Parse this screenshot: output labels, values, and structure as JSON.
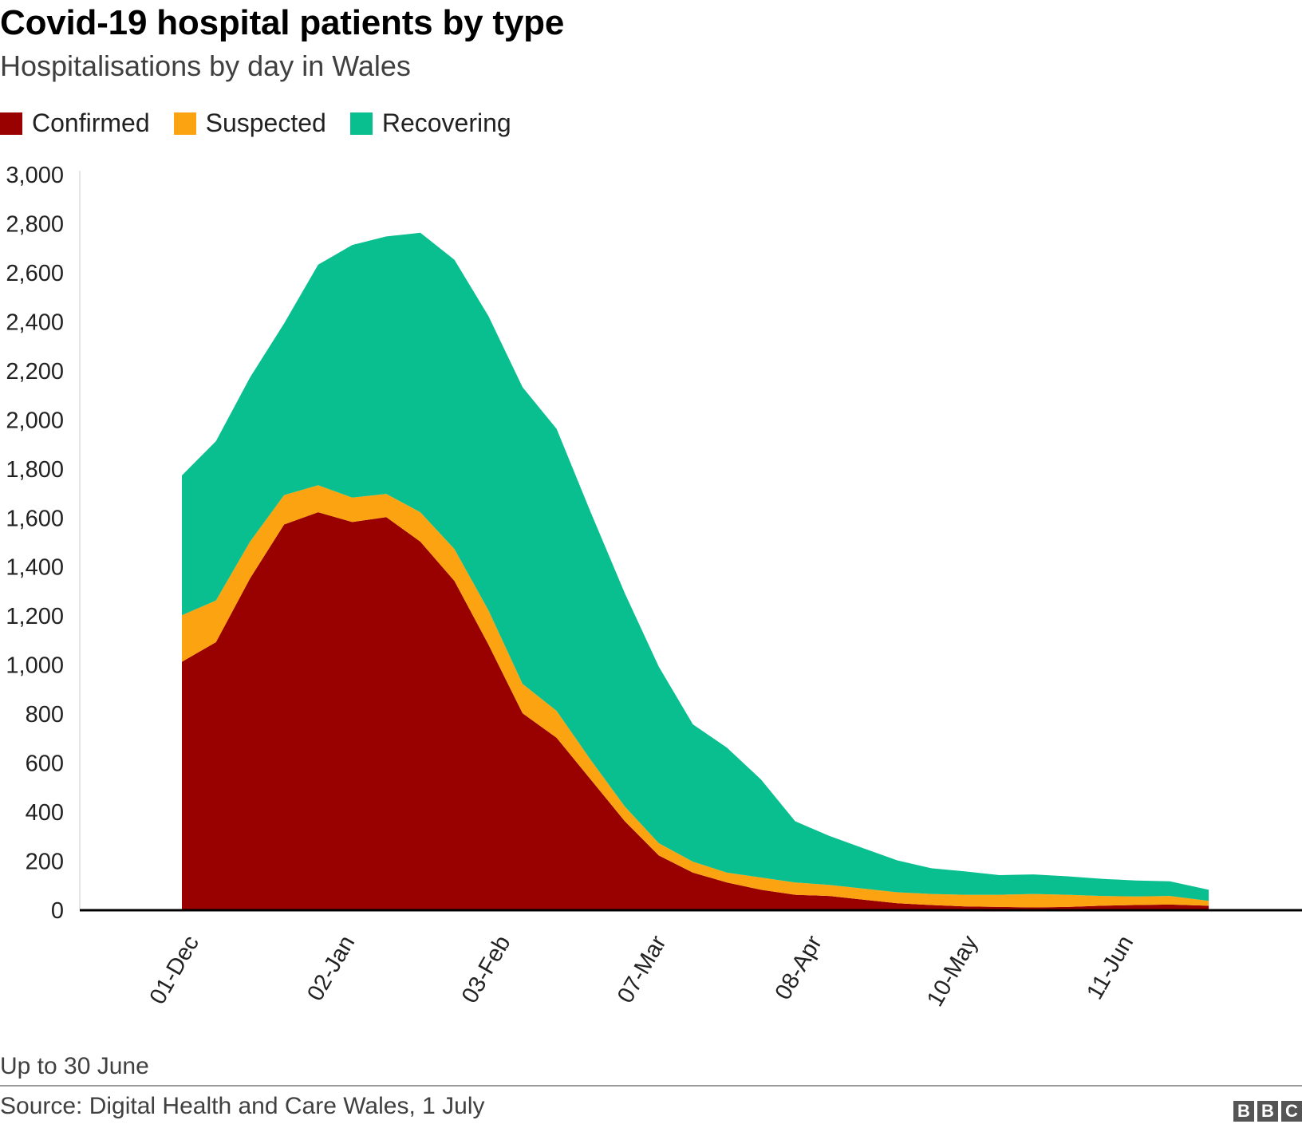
{
  "title": "Covid-19 hospital patients by type",
  "subtitle": "Hospitalisations by day in Wales",
  "legend": [
    {
      "label": "Confirmed",
      "color": "#990000"
    },
    {
      "label": "Suspected",
      "color": "#fca311"
    },
    {
      "label": "Recovering",
      "color": "#0abf8f"
    }
  ],
  "footnote": "Up to 30 June",
  "source": "Source: Digital Health and Care Wales, 1 July",
  "logo": [
    "B",
    "B",
    "C"
  ],
  "chart_data": {
    "type": "area",
    "stacked": true,
    "x_label": "",
    "y_label": "",
    "ylim": [
      0,
      3000
    ],
    "y_ticks": [
      0,
      200,
      400,
      600,
      800,
      1000,
      1200,
      1400,
      1600,
      1800,
      2000,
      2200,
      2400,
      2600,
      2800,
      3000
    ],
    "y_tick_labels": [
      "0",
      "200",
      "400",
      "600",
      "800",
      "1,000",
      "1,200",
      "1,400",
      "1,600",
      "1,800",
      "2,000",
      "2,200",
      "2,400",
      "2,600",
      "2,800",
      "3,000"
    ],
    "x_range": [
      "2020-12-01",
      "2021-06-30"
    ],
    "x_ticks": [
      "2020-12-01",
      "2021-01-02",
      "2021-02-03",
      "2021-03-07",
      "2021-04-08",
      "2021-05-10",
      "2021-06-11"
    ],
    "x_tick_labels": [
      "01-Dec",
      "02-Jan",
      "03-Feb",
      "07-Mar",
      "08-Apr",
      "10-May",
      "11-Jun"
    ],
    "grid": false,
    "legend_position": "top-left",
    "series": [
      {
        "name": "Confirmed",
        "color": "#990000",
        "points": [
          [
            "2020-12-01",
            1010
          ],
          [
            "2020-12-08",
            1090
          ],
          [
            "2020-12-15",
            1350
          ],
          [
            "2020-12-22",
            1570
          ],
          [
            "2020-12-29",
            1620
          ],
          [
            "2021-01-05",
            1580
          ],
          [
            "2021-01-12",
            1600
          ],
          [
            "2021-01-19",
            1500
          ],
          [
            "2021-01-26",
            1340
          ],
          [
            "2021-02-02",
            1080
          ],
          [
            "2021-02-09",
            800
          ],
          [
            "2021-02-16",
            700
          ],
          [
            "2021-02-23",
            530
          ],
          [
            "2021-03-02",
            360
          ],
          [
            "2021-03-09",
            220
          ],
          [
            "2021-03-16",
            150
          ],
          [
            "2021-03-23",
            110
          ],
          [
            "2021-03-30",
            80
          ],
          [
            "2021-04-06",
            60
          ],
          [
            "2021-04-13",
            55
          ],
          [
            "2021-04-20",
            40
          ],
          [
            "2021-04-27",
            25
          ],
          [
            "2021-05-04",
            18
          ],
          [
            "2021-05-11",
            12
          ],
          [
            "2021-05-18",
            10
          ],
          [
            "2021-05-25",
            8
          ],
          [
            "2021-06-01",
            10
          ],
          [
            "2021-06-08",
            15
          ],
          [
            "2021-06-15",
            18
          ],
          [
            "2021-06-22",
            20
          ],
          [
            "2021-06-30",
            15
          ]
        ]
      },
      {
        "name": "Suspected",
        "color": "#fca311",
        "points": [
          [
            "2020-12-01",
            190
          ],
          [
            "2020-12-08",
            170
          ],
          [
            "2020-12-15",
            150
          ],
          [
            "2020-12-22",
            120
          ],
          [
            "2020-12-29",
            110
          ],
          [
            "2021-01-05",
            100
          ],
          [
            "2021-01-12",
            95
          ],
          [
            "2021-01-19",
            120
          ],
          [
            "2021-01-26",
            130
          ],
          [
            "2021-02-02",
            140
          ],
          [
            "2021-02-09",
            120
          ],
          [
            "2021-02-16",
            110
          ],
          [
            "2021-02-23",
            80
          ],
          [
            "2021-03-02",
            60
          ],
          [
            "2021-03-09",
            50
          ],
          [
            "2021-03-16",
            45
          ],
          [
            "2021-03-23",
            40
          ],
          [
            "2021-03-30",
            50
          ],
          [
            "2021-04-06",
            50
          ],
          [
            "2021-04-13",
            45
          ],
          [
            "2021-04-20",
            45
          ],
          [
            "2021-04-27",
            45
          ],
          [
            "2021-05-04",
            45
          ],
          [
            "2021-05-11",
            48
          ],
          [
            "2021-05-18",
            50
          ],
          [
            "2021-05-25",
            55
          ],
          [
            "2021-06-01",
            50
          ],
          [
            "2021-06-08",
            40
          ],
          [
            "2021-06-15",
            35
          ],
          [
            "2021-06-22",
            35
          ],
          [
            "2021-06-30",
            20
          ]
        ]
      },
      {
        "name": "Recovering",
        "color": "#0abf8f",
        "points": [
          [
            "2020-12-01",
            570
          ],
          [
            "2020-12-08",
            650
          ],
          [
            "2020-12-15",
            670
          ],
          [
            "2020-12-22",
            700
          ],
          [
            "2020-12-29",
            900
          ],
          [
            "2021-01-05",
            1030
          ],
          [
            "2021-01-12",
            1050
          ],
          [
            "2021-01-19",
            1140
          ],
          [
            "2021-01-26",
            1180
          ],
          [
            "2021-02-02",
            1200
          ],
          [
            "2021-02-09",
            1210
          ],
          [
            "2021-02-16",
            1150
          ],
          [
            "2021-02-23",
            1010
          ],
          [
            "2021-03-02",
            870
          ],
          [
            "2021-03-09",
            720
          ],
          [
            "2021-03-16",
            560
          ],
          [
            "2021-03-23",
            510
          ],
          [
            "2021-03-30",
            400
          ],
          [
            "2021-04-06",
            250
          ],
          [
            "2021-04-13",
            200
          ],
          [
            "2021-04-20",
            165
          ],
          [
            "2021-04-27",
            130
          ],
          [
            "2021-05-04",
            105
          ],
          [
            "2021-05-11",
            95
          ],
          [
            "2021-05-18",
            80
          ],
          [
            "2021-05-25",
            80
          ],
          [
            "2021-06-01",
            75
          ],
          [
            "2021-06-08",
            70
          ],
          [
            "2021-06-15",
            65
          ],
          [
            "2021-06-22",
            60
          ],
          [
            "2021-06-30",
            45
          ]
        ]
      }
    ]
  }
}
